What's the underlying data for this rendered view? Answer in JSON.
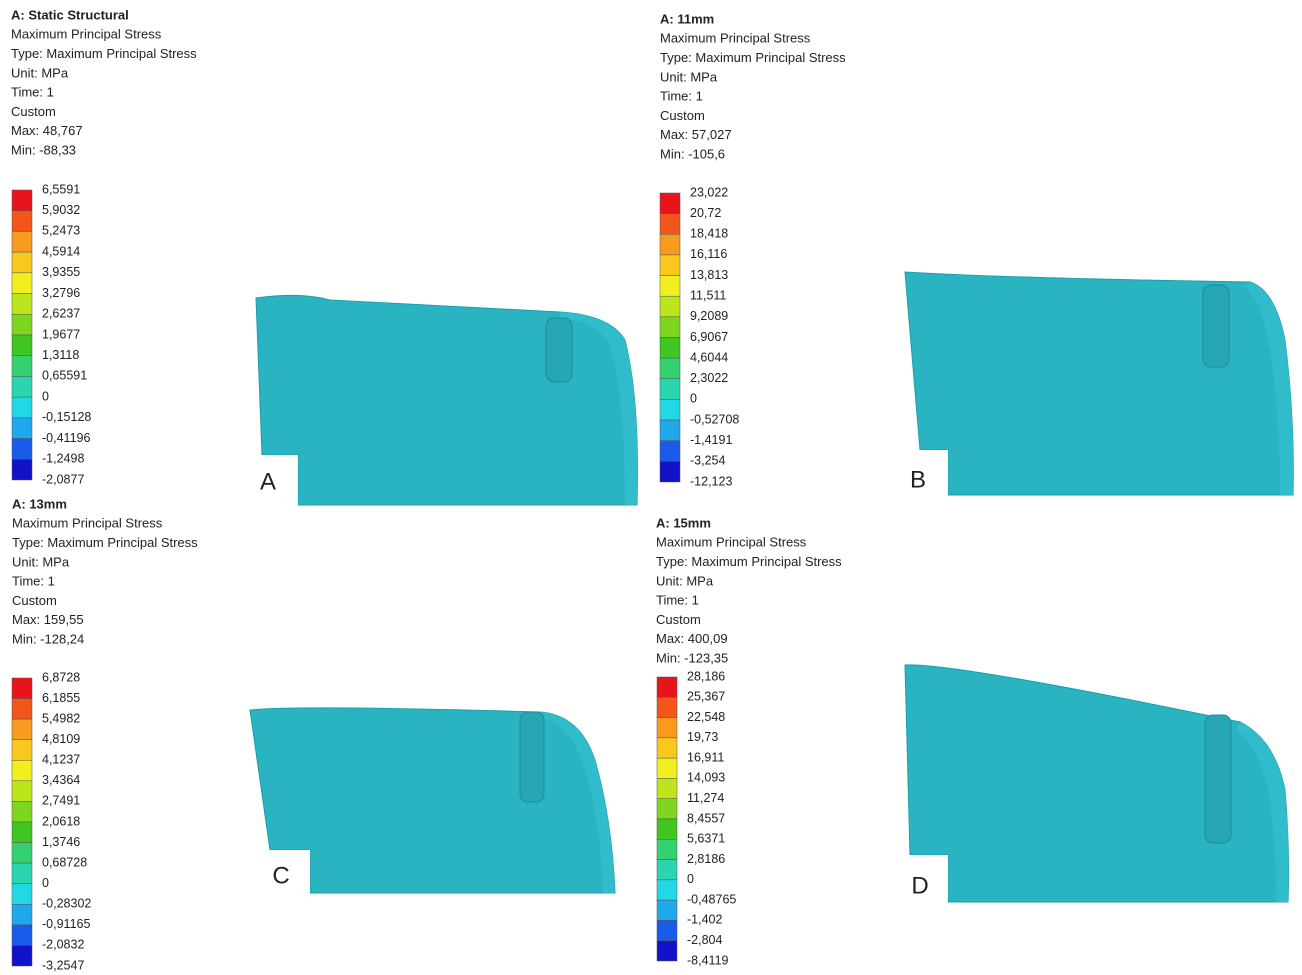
{
  "panels": [
    {
      "header": [
        "A: Static Structural",
        "Maximum Principal Stress",
        "Type: Maximum Principal Stress",
        "Unit: MPa",
        "Time: 1",
        "Custom",
        "Max: 48,767",
        "Min: -88,33"
      ],
      "legend": [
        "6,5591",
        "5,9032",
        "5,2473",
        "4,5914",
        "3,9355",
        "3,2796",
        "2,6237",
        "1,9677",
        "1,3118",
        "0,65591",
        "0",
        "-0,15128",
        "-0,41196",
        "-1,2498",
        "-2,0877"
      ],
      "letter": "A"
    },
    {
      "header": [
        "A: 11mm",
        "Maximum Principal Stress",
        "Type: Maximum Principal Stress",
        "Unit: MPa",
        "Time: 1",
        "Custom",
        "Max: 57,027",
        "Min: -105,6"
      ],
      "legend": [
        "23,022",
        "20,72",
        "18,418",
        "16,116",
        "13,813",
        "11,511",
        "9,2089",
        "6,9067",
        "4,6044",
        "2,3022",
        "0",
        "-0,52708",
        "-1,4191",
        "-3,254",
        "-12,123"
      ],
      "letter": "B"
    },
    {
      "header": [
        "A: 13mm",
        "Maximum Principal Stress",
        "Type: Maximum Principal Stress",
        "Unit: MPa",
        "Time: 1",
        "Custom",
        "Max: 159,55",
        "Min: -128,24"
      ],
      "legend": [
        "6,8728",
        "6,1855",
        "5,4982",
        "4,8109",
        "4,1237",
        "3,4364",
        "2,7491",
        "2,0618",
        "1,3746",
        "0,68728",
        "0",
        "-0,28302",
        "-0,91165",
        "-2,0832",
        "-3,2547"
      ],
      "letter": "C"
    },
    {
      "header": [
        "A: 15mm",
        "Maximum Principal Stress",
        "Type: Maximum Principal Stress",
        "Unit: MPa",
        "Time: 1",
        "Custom",
        "Max: 400,09",
        "Min: -123,35"
      ],
      "legend": [
        "28,186",
        "25,367",
        "22,548",
        "19,73",
        "16,911",
        "14,093",
        "11,274",
        "8,4557",
        "5,6371",
        "2,8186",
        "0",
        "-0,48765",
        "-1,402",
        "-2,804",
        "-8,4119"
      ],
      "letter": "D"
    }
  ]
}
